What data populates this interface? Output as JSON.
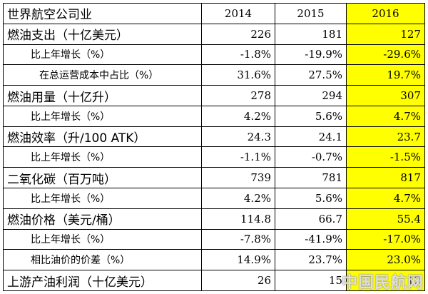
{
  "table": {
    "header": {
      "label": "世界航空公司业",
      "years": [
        "2014",
        "2015",
        "2016"
      ]
    },
    "rows": [
      {
        "label": "燃油支出（十亿美元）",
        "values": [
          "226",
          "181",
          "127"
        ]
      },
      {
        "label": "比上年增长（%）",
        "values": [
          "-1.8%",
          "-19.9%",
          "-29.6%"
        ]
      },
      {
        "label": "在总运营成本中占比（%）",
        "values": [
          "31.6%",
          "27.5%",
          "19.7%"
        ]
      },
      {
        "label": "燃油用量（十亿升）",
        "values": [
          "278",
          "294",
          "307"
        ]
      },
      {
        "label": "比上年增长（%）",
        "values": [
          "4.2%",
          "5.6%",
          "4.7%"
        ]
      },
      {
        "label": "燃油效率（升/100 ATK）",
        "values": [
          "24.3",
          "24.1",
          "23.7"
        ]
      },
      {
        "label": "比上年增长（%）",
        "values": [
          "-1.1%",
          "-0.7%",
          "-1.5%"
        ]
      },
      {
        "label": "二氧化碳（百万吨）",
        "values": [
          "739",
          "781",
          "817"
        ]
      },
      {
        "label": "比上年增长（%）",
        "values": [
          "4.2%",
          "5.6%",
          "4.7%"
        ]
      },
      {
        "label": "燃油价格（美元/桶）",
        "values": [
          "114.8",
          "66.7",
          "55.4"
        ]
      },
      {
        "label": "比上年增长（%）",
        "values": [
          "-7.8%",
          "-41.9%",
          "-17.0%"
        ]
      },
      {
        "label": "相比油价的价差（%）",
        "values": [
          "14.9%",
          "23.7%",
          "23.0%"
        ]
      },
      {
        "label": "上游产油利润（十亿美元）",
        "values": [
          "26",
          "15",
          "12"
        ]
      }
    ],
    "highlight_color": "#ffff00"
  },
  "watermark": "中国民航网"
}
